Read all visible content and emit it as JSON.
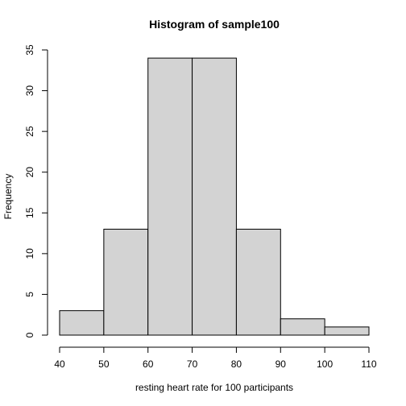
{
  "chart_data": {
    "type": "bar",
    "title": "Histogram of sample100",
    "xlabel": "resting heart rate for 100 participants",
    "ylabel": "Frequency",
    "bins": [
      {
        "start": 40,
        "end": 50,
        "count": 3
      },
      {
        "start": 50,
        "end": 60,
        "count": 13
      },
      {
        "start": 60,
        "end": 70,
        "count": 34
      },
      {
        "start": 70,
        "end": 80,
        "count": 34
      },
      {
        "start": 80,
        "end": 90,
        "count": 13
      },
      {
        "start": 90,
        "end": 100,
        "count": 2
      },
      {
        "start": 100,
        "end": 110,
        "count": 1
      }
    ],
    "xlim": [
      40,
      110
    ],
    "ylim": [
      0,
      35
    ],
    "xticks": [
      "40",
      "50",
      "60",
      "70",
      "80",
      "90",
      "100",
      "110"
    ],
    "yticks": [
      "0",
      "5",
      "10",
      "15",
      "20",
      "25",
      "30",
      "35"
    ],
    "bar_color": "#d3d3d3",
    "edge_color": "#000000",
    "grid": false
  }
}
